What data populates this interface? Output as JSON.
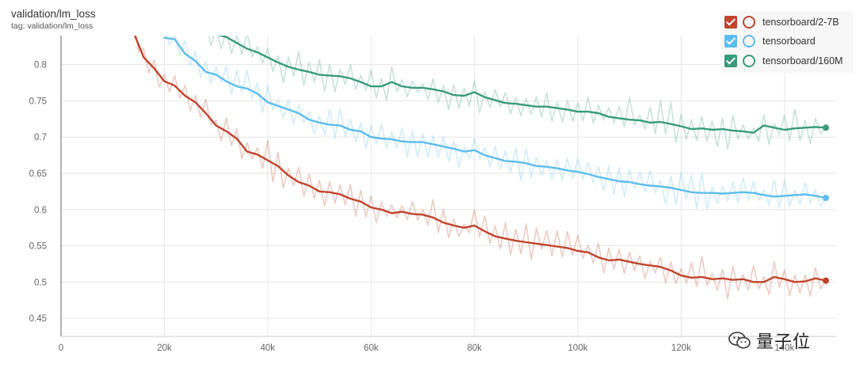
{
  "header": {
    "title": "validation/lm_loss",
    "subtitle": "tag: validation/lm_loss"
  },
  "legend": {
    "items": [
      {
        "label": "tensorboard/2-7B",
        "color": "#c0442c",
        "checked": true
      },
      {
        "label": "tensorboard",
        "color": "#5ebcee",
        "checked": true
      },
      {
        "label": "tensorboard/160M",
        "color": "#3a9a7c",
        "checked": true
      }
    ]
  },
  "watermark": {
    "text": "量子位"
  },
  "chart_data": {
    "type": "line",
    "title": "validation/lm_loss",
    "xlabel": "",
    "ylabel": "",
    "xlim": [
      0,
      150000
    ],
    "ylim": [
      0.425,
      0.84
    ],
    "grid": true,
    "legend_position": "top-right",
    "x_ticks": [
      0,
      20000,
      40000,
      60000,
      80000,
      100000,
      120000,
      140000
    ],
    "x_tick_labels": [
      "0",
      "20k",
      "40k",
      "60k",
      "80k",
      "100k",
      "120k",
      "140k"
    ],
    "y_ticks": [
      0.45,
      0.5,
      0.55,
      0.6,
      0.65,
      0.7,
      0.75,
      0.8
    ],
    "y_tick_labels": [
      "0.45",
      "0.5",
      "0.55",
      "0.6",
      "0.65",
      "0.7",
      "0.75",
      "0.8"
    ],
    "series": [
      {
        "name": "tensorboard/2-7B",
        "color": "#c0442c",
        "x": [
          14000,
          16000,
          18000,
          20000,
          22000,
          24000,
          26000,
          28000,
          30000,
          32000,
          34000,
          36000,
          38000,
          40000,
          42000,
          44000,
          46000,
          48000,
          50000,
          52000,
          54000,
          56000,
          58000,
          60000,
          62000,
          64000,
          66000,
          68000,
          70000,
          72000,
          74000,
          76000,
          78000,
          80000,
          82000,
          84000,
          86000,
          88000,
          90000,
          92000,
          94000,
          96000,
          98000,
          100000,
          102000,
          104000,
          106000,
          108000,
          110000,
          112000,
          114000,
          116000,
          118000,
          120000,
          122000,
          124000,
          126000,
          128000,
          130000,
          132000,
          134000,
          136000,
          138000,
          140000,
          142000,
          144000,
          146000,
          148000
        ],
        "y": [
          0.845,
          0.81,
          0.795,
          0.777,
          0.771,
          0.757,
          0.748,
          0.733,
          0.716,
          0.708,
          0.698,
          0.68,
          0.676,
          0.668,
          0.66,
          0.647,
          0.638,
          0.633,
          0.625,
          0.624,
          0.621,
          0.615,
          0.611,
          0.603,
          0.6,
          0.595,
          0.597,
          0.594,
          0.593,
          0.589,
          0.582,
          0.578,
          0.575,
          0.578,
          0.57,
          0.563,
          0.56,
          0.557,
          0.555,
          0.553,
          0.551,
          0.549,
          0.547,
          0.543,
          0.541,
          0.534,
          0.53,
          0.531,
          0.528,
          0.525,
          0.523,
          0.521,
          0.516,
          0.509,
          0.506,
          0.507,
          0.504,
          0.505,
          0.503,
          0.504,
          0.5,
          0.5,
          0.507,
          0.504,
          0.5,
          0.501,
          0.505,
          0.502
        ]
      },
      {
        "name": "tensorboard",
        "color": "#5ebcee",
        "x": [
          20000,
          22000,
          24000,
          26000,
          28000,
          30000,
          32000,
          34000,
          36000,
          38000,
          40000,
          42000,
          44000,
          46000,
          48000,
          50000,
          52000,
          54000,
          56000,
          58000,
          60000,
          62000,
          64000,
          66000,
          68000,
          70000,
          72000,
          74000,
          76000,
          78000,
          80000,
          82000,
          84000,
          86000,
          88000,
          90000,
          92000,
          94000,
          96000,
          98000,
          100000,
          102000,
          104000,
          106000,
          108000,
          110000,
          112000,
          114000,
          116000,
          118000,
          120000,
          122000,
          124000,
          126000,
          128000,
          130000,
          132000,
          134000,
          136000,
          138000,
          140000,
          142000,
          144000,
          146000,
          148000
        ],
        "y": [
          0.837,
          0.835,
          0.815,
          0.805,
          0.79,
          0.786,
          0.777,
          0.77,
          0.767,
          0.76,
          0.748,
          0.743,
          0.738,
          0.733,
          0.724,
          0.72,
          0.717,
          0.716,
          0.71,
          0.708,
          0.7,
          0.698,
          0.697,
          0.694,
          0.693,
          0.693,
          0.69,
          0.687,
          0.684,
          0.68,
          0.682,
          0.675,
          0.671,
          0.667,
          0.666,
          0.664,
          0.66,
          0.659,
          0.657,
          0.654,
          0.652,
          0.649,
          0.645,
          0.642,
          0.639,
          0.638,
          0.635,
          0.633,
          0.632,
          0.63,
          0.627,
          0.624,
          0.623,
          0.623,
          0.622,
          0.623,
          0.624,
          0.623,
          0.62,
          0.618,
          0.619,
          0.62,
          0.621,
          0.619,
          0.616
        ]
      },
      {
        "name": "tensorboard/160M",
        "color": "#3a9a7c",
        "x": [
          28000,
          30000,
          32000,
          34000,
          36000,
          38000,
          40000,
          42000,
          44000,
          46000,
          48000,
          50000,
          52000,
          54000,
          56000,
          58000,
          60000,
          62000,
          64000,
          66000,
          68000,
          70000,
          72000,
          74000,
          76000,
          78000,
          80000,
          82000,
          84000,
          86000,
          88000,
          90000,
          92000,
          94000,
          96000,
          98000,
          100000,
          102000,
          104000,
          106000,
          108000,
          110000,
          112000,
          114000,
          116000,
          118000,
          120000,
          122000,
          124000,
          126000,
          128000,
          130000,
          132000,
          134000,
          136000,
          138000,
          140000,
          142000,
          144000,
          146000,
          148000
        ],
        "y": [
          0.845,
          0.842,
          0.838,
          0.83,
          0.822,
          0.817,
          0.81,
          0.803,
          0.797,
          0.793,
          0.79,
          0.786,
          0.785,
          0.784,
          0.781,
          0.776,
          0.77,
          0.77,
          0.776,
          0.77,
          0.768,
          0.768,
          0.766,
          0.763,
          0.758,
          0.757,
          0.762,
          0.755,
          0.751,
          0.747,
          0.746,
          0.744,
          0.742,
          0.742,
          0.74,
          0.738,
          0.735,
          0.735,
          0.733,
          0.728,
          0.726,
          0.724,
          0.723,
          0.72,
          0.721,
          0.718,
          0.715,
          0.711,
          0.712,
          0.71,
          0.711,
          0.709,
          0.708,
          0.706,
          0.716,
          0.713,
          0.71,
          0.712,
          0.713,
          0.714,
          0.713
        ]
      }
    ]
  }
}
